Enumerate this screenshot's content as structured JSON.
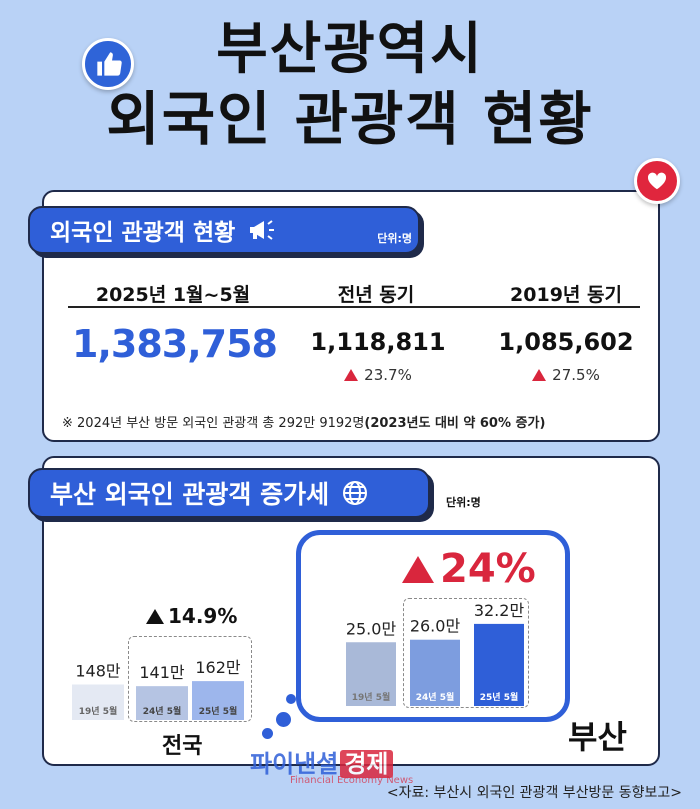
{
  "title": {
    "line1": "부산광역시",
    "line2": "외국인 관광객 현황"
  },
  "icons": {
    "thumb": "thumbs-up-icon",
    "heart": "heart-icon",
    "megaphone": "megaphone-icon",
    "globe": "globe-icon"
  },
  "colors": {
    "accent": "#2f5fd8",
    "up": "#d9263d",
    "background": "#b9d2f6"
  },
  "section1": {
    "tab_label": "외국인 관광객 현황",
    "unit": "단위:명",
    "columns": [
      {
        "head": "2025년 1월~5월",
        "value": "1,383,758"
      },
      {
        "head": "전년 동기",
        "value": "1,118,811",
        "change": "23.7%"
      },
      {
        "head": "2019년 동기",
        "value": "1,085,602",
        "change": "27.5%"
      }
    ],
    "note_plain": "※ 2024년 부산 방문 외국인 관광객 총 292만 9192명",
    "note_bold": "(2023년도 대비 약 60% 증가)"
  },
  "section2": {
    "tab_label": "부산 외국인 관광객 증가세",
    "unit": "단위:명",
    "national_label": "전국",
    "busan_label": "부산",
    "national_change": "14.9%",
    "busan_change": "24%"
  },
  "chart_data": [
    {
      "type": "bar",
      "region": "전국",
      "categories": [
        "19년 5월",
        "24년 5월",
        "25년 5월"
      ],
      "values": [
        148,
        141,
        162
      ],
      "value_labels": [
        "148만",
        "141만",
        "162만"
      ],
      "unit": "만",
      "colors": [
        "#e4e9f3",
        "#b5c4e3",
        "#9db6ec"
      ],
      "annotation": "14.9%"
    },
    {
      "type": "bar",
      "region": "부산",
      "categories": [
        "19년 5월",
        "24년 5월",
        "25년 5월"
      ],
      "values": [
        25.0,
        26.0,
        32.2
      ],
      "value_labels": [
        "25.0만",
        "26.0만",
        "32.2만"
      ],
      "unit": "만",
      "colors": [
        "#a9b9d8",
        "#7d9ddf",
        "#2f5fd8"
      ],
      "annotation": "24%"
    }
  ],
  "watermark": {
    "main": "파이낸셜",
    "red": "경제",
    "sub": "Financial Economy News"
  },
  "source": "<자료: 부산시 외국인 관광객 부산방문 동향보고>"
}
